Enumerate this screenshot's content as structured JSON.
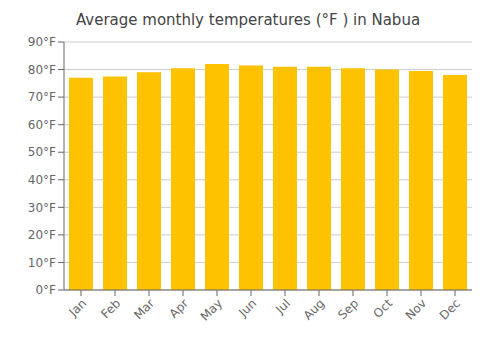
{
  "chart_data": {
    "type": "bar",
    "title": "Average monthly temperatures (°F ) in Nabua",
    "categories": [
      "Jan",
      "Feb",
      "Mar",
      "Apr",
      "May",
      "Jun",
      "Jul",
      "Aug",
      "Sep",
      "Oct",
      "Nov",
      "Dec"
    ],
    "values": [
      77.0,
      77.5,
      79.0,
      80.5,
      82.0,
      81.5,
      81.0,
      81.0,
      80.5,
      80.0,
      79.5,
      78.0
    ],
    "color": "#FFC200",
    "ylim": [
      0,
      90
    ],
    "yticks": [
      {
        "value": 0,
        "label": "0°F"
      },
      {
        "value": 10,
        "label": "10°F"
      },
      {
        "value": 20,
        "label": "20°F"
      },
      {
        "value": 30,
        "label": "30°F"
      },
      {
        "value": 40,
        "label": "40°F"
      },
      {
        "value": 50,
        "label": "50°F"
      },
      {
        "value": 60,
        "label": "60°F"
      },
      {
        "value": 70,
        "label": "70°F"
      },
      {
        "value": 80,
        "label": "80°F"
      },
      {
        "value": 90,
        "label": "90°F"
      }
    ],
    "grid": true
  }
}
